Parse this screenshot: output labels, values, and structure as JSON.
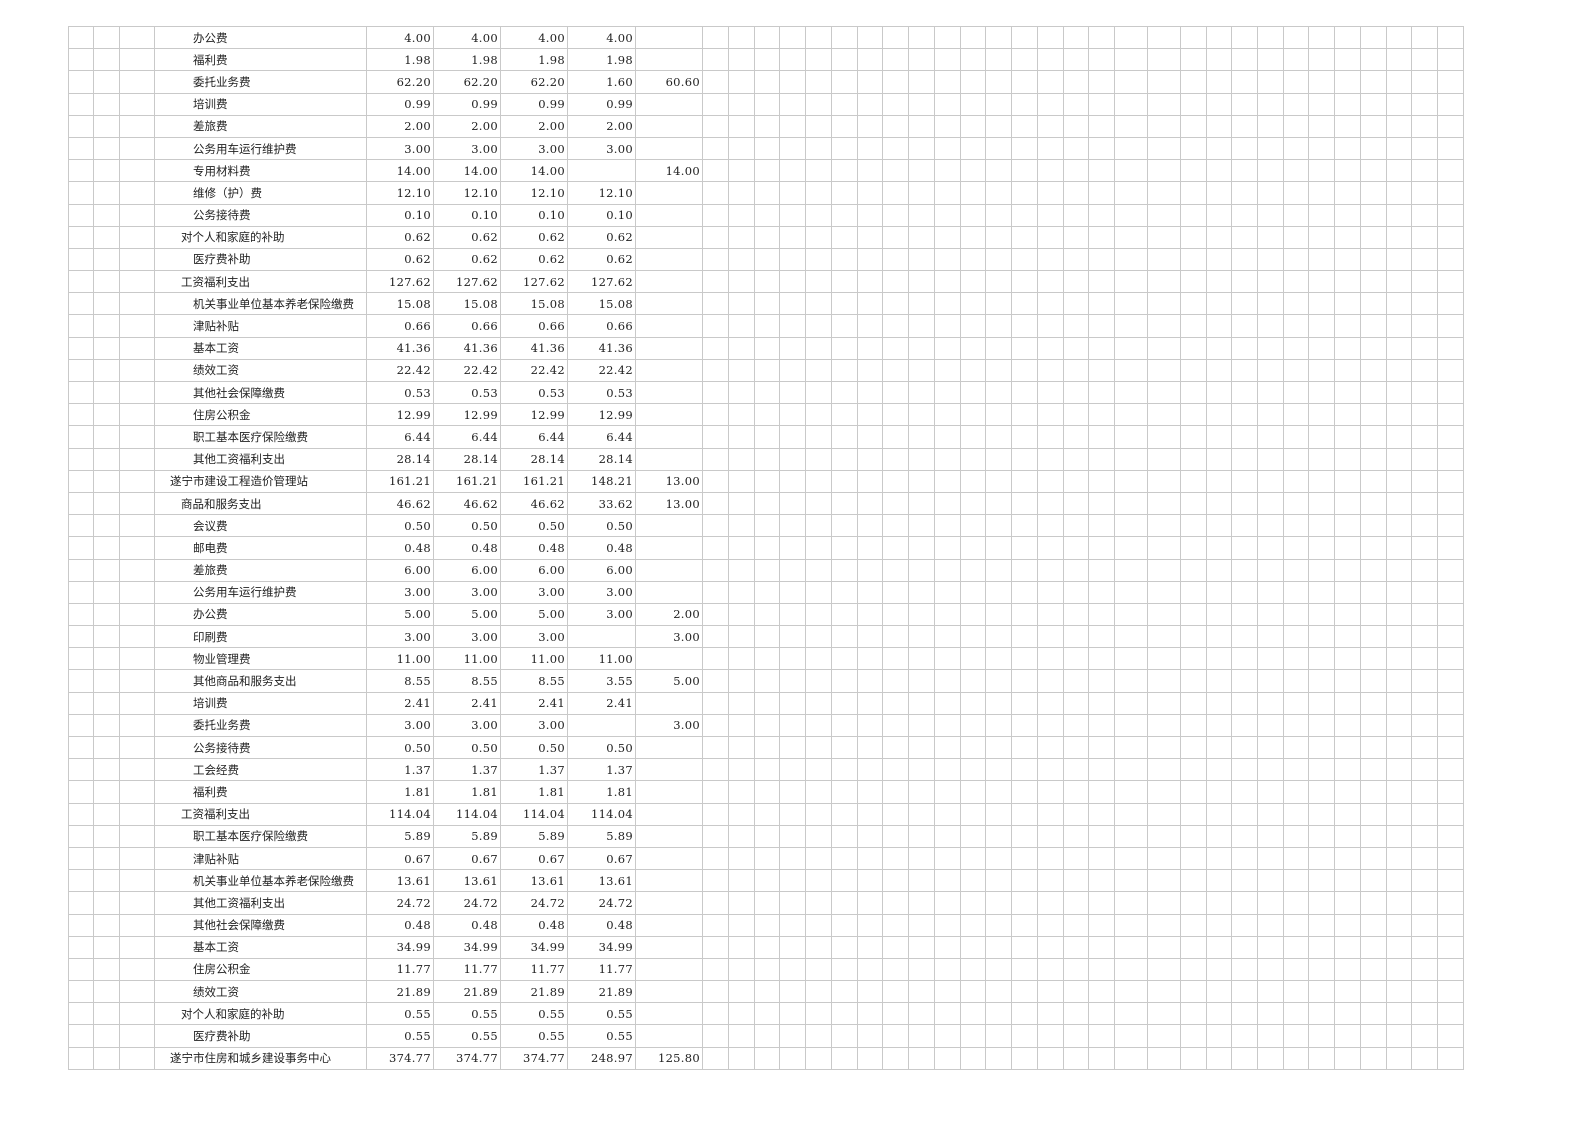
{
  "table": {
    "rows": [
      {
        "name": "办公费",
        "level": 2,
        "values": [
          "4.00",
          "4.00",
          "4.00",
          "4.00",
          ""
        ]
      },
      {
        "name": "福利费",
        "level": 2,
        "values": [
          "1.98",
          "1.98",
          "1.98",
          "1.98",
          ""
        ]
      },
      {
        "name": "委托业务费",
        "level": 2,
        "values": [
          "62.20",
          "62.20",
          "62.20",
          "1.60",
          "60.60"
        ]
      },
      {
        "name": "培训费",
        "level": 2,
        "values": [
          "0.99",
          "0.99",
          "0.99",
          "0.99",
          ""
        ]
      },
      {
        "name": "差旅费",
        "level": 2,
        "values": [
          "2.00",
          "2.00",
          "2.00",
          "2.00",
          ""
        ]
      },
      {
        "name": "公务用车运行维护费",
        "level": 2,
        "values": [
          "3.00",
          "3.00",
          "3.00",
          "3.00",
          ""
        ]
      },
      {
        "name": "专用材料费",
        "level": 2,
        "values": [
          "14.00",
          "14.00",
          "14.00",
          "",
          "14.00"
        ]
      },
      {
        "name": "维修（护）费",
        "level": 2,
        "values": [
          "12.10",
          "12.10",
          "12.10",
          "12.10",
          ""
        ]
      },
      {
        "name": "公务接待费",
        "level": 2,
        "values": [
          "0.10",
          "0.10",
          "0.10",
          "0.10",
          ""
        ]
      },
      {
        "name": "对个人和家庭的补助",
        "level": 1,
        "values": [
          "0.62",
          "0.62",
          "0.62",
          "0.62",
          ""
        ]
      },
      {
        "name": "医疗费补助",
        "level": 2,
        "values": [
          "0.62",
          "0.62",
          "0.62",
          "0.62",
          ""
        ]
      },
      {
        "name": "工资福利支出",
        "level": 1,
        "values": [
          "127.62",
          "127.62",
          "127.62",
          "127.62",
          ""
        ]
      },
      {
        "name": "机关事业单位基本养老保险缴费",
        "level": 2,
        "values": [
          "15.08",
          "15.08",
          "15.08",
          "15.08",
          ""
        ]
      },
      {
        "name": "津贴补贴",
        "level": 2,
        "values": [
          "0.66",
          "0.66",
          "0.66",
          "0.66",
          ""
        ]
      },
      {
        "name": "基本工资",
        "level": 2,
        "values": [
          "41.36",
          "41.36",
          "41.36",
          "41.36",
          ""
        ]
      },
      {
        "name": "绩效工资",
        "level": 2,
        "values": [
          "22.42",
          "22.42",
          "22.42",
          "22.42",
          ""
        ]
      },
      {
        "name": "其他社会保障缴费",
        "level": 2,
        "values": [
          "0.53",
          "0.53",
          "0.53",
          "0.53",
          ""
        ]
      },
      {
        "name": "住房公积金",
        "level": 2,
        "values": [
          "12.99",
          "12.99",
          "12.99",
          "12.99",
          ""
        ]
      },
      {
        "name": "职工基本医疗保险缴费",
        "level": 2,
        "values": [
          "6.44",
          "6.44",
          "6.44",
          "6.44",
          ""
        ]
      },
      {
        "name": "其他工资福利支出",
        "level": 2,
        "values": [
          "28.14",
          "28.14",
          "28.14",
          "28.14",
          ""
        ]
      },
      {
        "name": "遂宁市建设工程造价管理站",
        "level": 0,
        "values": [
          "161.21",
          "161.21",
          "161.21",
          "148.21",
          "13.00"
        ]
      },
      {
        "name": "商品和服务支出",
        "level": 1,
        "values": [
          "46.62",
          "46.62",
          "46.62",
          "33.62",
          "13.00"
        ]
      },
      {
        "name": "会议费",
        "level": 2,
        "values": [
          "0.50",
          "0.50",
          "0.50",
          "0.50",
          ""
        ]
      },
      {
        "name": "邮电费",
        "level": 2,
        "values": [
          "0.48",
          "0.48",
          "0.48",
          "0.48",
          ""
        ]
      },
      {
        "name": "差旅费",
        "level": 2,
        "values": [
          "6.00",
          "6.00",
          "6.00",
          "6.00",
          ""
        ]
      },
      {
        "name": "公务用车运行维护费",
        "level": 2,
        "values": [
          "3.00",
          "3.00",
          "3.00",
          "3.00",
          ""
        ]
      },
      {
        "name": "办公费",
        "level": 2,
        "values": [
          "5.00",
          "5.00",
          "5.00",
          "3.00",
          "2.00"
        ]
      },
      {
        "name": "印刷费",
        "level": 2,
        "values": [
          "3.00",
          "3.00",
          "3.00",
          "",
          "3.00"
        ]
      },
      {
        "name": "物业管理费",
        "level": 2,
        "values": [
          "11.00",
          "11.00",
          "11.00",
          "11.00",
          ""
        ]
      },
      {
        "name": "其他商品和服务支出",
        "level": 2,
        "values": [
          "8.55",
          "8.55",
          "8.55",
          "3.55",
          "5.00"
        ]
      },
      {
        "name": "培训费",
        "level": 2,
        "values": [
          "2.41",
          "2.41",
          "2.41",
          "2.41",
          ""
        ]
      },
      {
        "name": "委托业务费",
        "level": 2,
        "values": [
          "3.00",
          "3.00",
          "3.00",
          "",
          "3.00"
        ]
      },
      {
        "name": "公务接待费",
        "level": 2,
        "values": [
          "0.50",
          "0.50",
          "0.50",
          "0.50",
          ""
        ]
      },
      {
        "name": "工会经费",
        "level": 2,
        "values": [
          "1.37",
          "1.37",
          "1.37",
          "1.37",
          ""
        ]
      },
      {
        "name": "福利费",
        "level": 2,
        "values": [
          "1.81",
          "1.81",
          "1.81",
          "1.81",
          ""
        ]
      },
      {
        "name": "工资福利支出",
        "level": 1,
        "values": [
          "114.04",
          "114.04",
          "114.04",
          "114.04",
          ""
        ]
      },
      {
        "name": "职工基本医疗保险缴费",
        "level": 2,
        "values": [
          "5.89",
          "5.89",
          "5.89",
          "5.89",
          ""
        ]
      },
      {
        "name": "津贴补贴",
        "level": 2,
        "values": [
          "0.67",
          "0.67",
          "0.67",
          "0.67",
          ""
        ]
      },
      {
        "name": "机关事业单位基本养老保险缴费",
        "level": 2,
        "values": [
          "13.61",
          "13.61",
          "13.61",
          "13.61",
          ""
        ]
      },
      {
        "name": "其他工资福利支出",
        "level": 2,
        "values": [
          "24.72",
          "24.72",
          "24.72",
          "24.72",
          ""
        ]
      },
      {
        "name": "其他社会保障缴费",
        "level": 2,
        "values": [
          "0.48",
          "0.48",
          "0.48",
          "0.48",
          ""
        ]
      },
      {
        "name": "基本工资",
        "level": 2,
        "values": [
          "34.99",
          "34.99",
          "34.99",
          "34.99",
          ""
        ]
      },
      {
        "name": "住房公积金",
        "level": 2,
        "values": [
          "11.77",
          "11.77",
          "11.77",
          "11.77",
          ""
        ]
      },
      {
        "name": "绩效工资",
        "level": 2,
        "values": [
          "21.89",
          "21.89",
          "21.89",
          "21.89",
          ""
        ]
      },
      {
        "name": "对个人和家庭的补助",
        "level": 1,
        "values": [
          "0.55",
          "0.55",
          "0.55",
          "0.55",
          ""
        ]
      },
      {
        "name": "医疗费补助",
        "level": 2,
        "values": [
          "0.55",
          "0.55",
          "0.55",
          "0.55",
          ""
        ]
      },
      {
        "name": "遂宁市住房和城乡建设事务中心",
        "level": 0,
        "values": [
          "374.77",
          "374.77",
          "374.77",
          "248.97",
          "125.80"
        ]
      }
    ]
  }
}
